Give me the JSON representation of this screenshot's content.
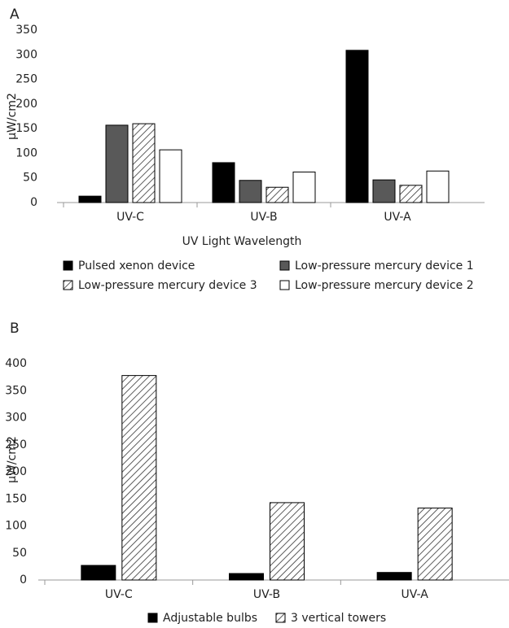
{
  "chart_data": [
    {
      "type": "bar",
      "panel_label": "A",
      "y_label": "µW/cm2",
      "x_label": "UV Light Wavelength",
      "categories": [
        "UV-C",
        "UV-B",
        "UV-A"
      ],
      "series": [
        {
          "name": "Pulsed xenon device",
          "color": "#000000",
          "values": [
            13,
            81,
            309
          ]
        },
        {
          "name": "Low-pressure mercury device 1",
          "color": "#595959",
          "values": [
            157,
            45,
            46
          ]
        },
        {
          "name": "Low-pressure mercury device 3",
          "color": "#ffffff",
          "pattern": "hatch",
          "values": [
            160,
            31,
            35
          ]
        },
        {
          "name": "Low-pressure mercury device 2",
          "color": "#ffffff",
          "values": [
            107,
            62,
            64
          ]
        }
      ],
      "ylim": [
        0,
        350
      ],
      "yticks": [
        0,
        50,
        100,
        150,
        200,
        250,
        300,
        350
      ],
      "grid": false,
      "legend": "bottom"
    },
    {
      "type": "bar",
      "panel_label": "B",
      "y_label": "µW/cm2",
      "categories": [
        "UV-C",
        "UV-B",
        "UV-A"
      ],
      "series": [
        {
          "name": "Adjustable bulbs",
          "color": "#000000",
          "values": [
            27,
            12,
            14
          ]
        },
        {
          "name": "3 vertical towers",
          "color": "#ffffff",
          "pattern": "hatch",
          "values": [
            378,
            143,
            133
          ]
        }
      ],
      "ylim": [
        0,
        400
      ],
      "yticks": [
        0,
        50,
        100,
        150,
        200,
        250,
        300,
        350,
        400
      ],
      "grid": false,
      "legend": "bottom"
    }
  ]
}
